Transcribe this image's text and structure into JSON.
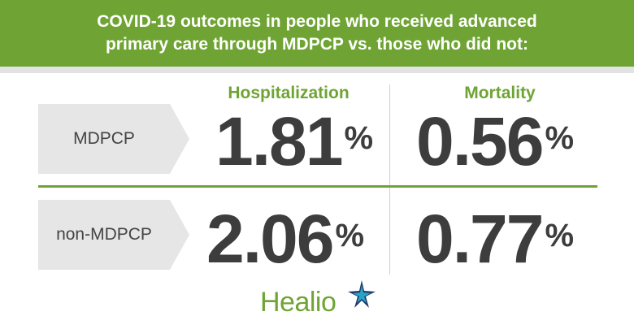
{
  "header": {
    "line1": "COVID-19 outcomes in people who received advanced",
    "line2": "primary care through MDPCP vs. those who did not:"
  },
  "columns": {
    "hospitalization": "Hospitalization",
    "mortality": "Mortality"
  },
  "rows": [
    {
      "label": "MDPCP",
      "hospitalization": "1.81",
      "mortality": "0.56"
    },
    {
      "label": "non-MDPCP",
      "hospitalization": "2.06",
      "mortality": "0.77"
    }
  ],
  "percent_symbol": "%",
  "logo": {
    "text": "Healio",
    "icon": "healio-star-icon"
  },
  "colors": {
    "green": "#6fa434",
    "dark_text": "#3d3d3d",
    "label_bg": "#e6e6e6",
    "navy": "#1f3a68",
    "teal": "#2aa3c8"
  }
}
